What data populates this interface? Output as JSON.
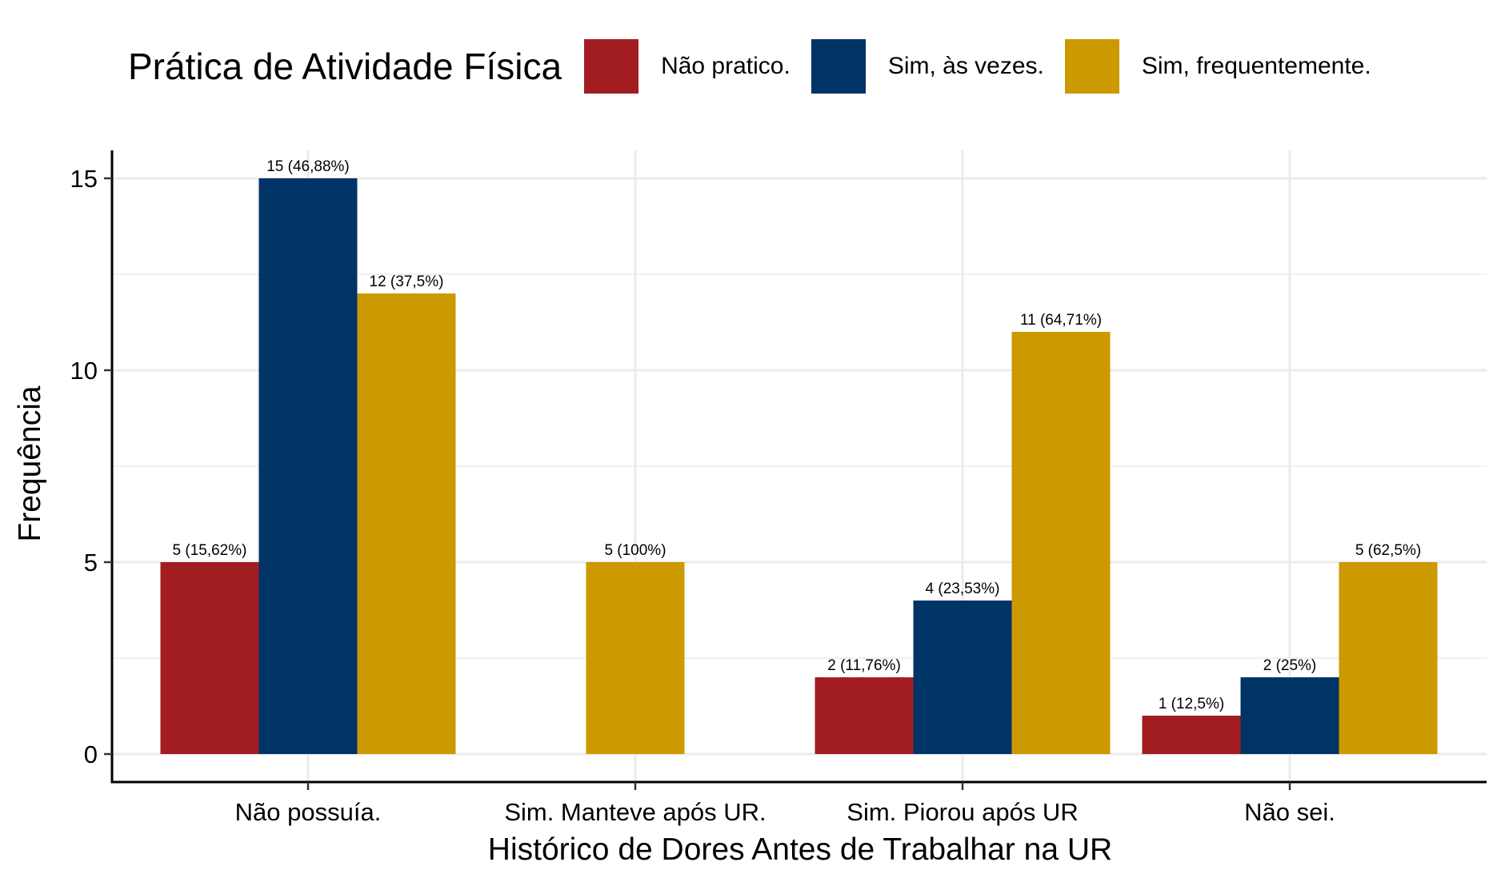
{
  "chart_data": {
    "type": "bar",
    "title": "",
    "xlabel": "Histórico de Dores Antes de Trabalhar na UR",
    "ylabel": "Frequência",
    "ylim": [
      0,
      15.7
    ],
    "yticks": [
      0,
      5,
      10,
      15
    ],
    "grid": true,
    "legend": {
      "title": "Prática de Atividade Física",
      "position": "top"
    },
    "categories": [
      "Não possuía.",
      "Sim. Manteve após UR.",
      "Sim. Piorou após UR",
      "Não sei."
    ],
    "series": [
      {
        "name": "Não pratico.",
        "color": "#A11D21",
        "values": [
          5,
          null,
          2,
          1
        ],
        "labels": [
          "5 (15,62%)",
          "",
          "2 (11,76%)",
          "1 (12,5%)"
        ]
      },
      {
        "name": "Sim, às vezes.",
        "color": "#003366",
        "values": [
          15,
          null,
          4,
          2
        ],
        "labels": [
          "15 (46,88%)",
          "",
          "4 (23,53%)",
          "2 (25%)"
        ]
      },
      {
        "name": "Sim, frequentemente.",
        "color": "#CC9900",
        "values": [
          12,
          5,
          11,
          5
        ],
        "labels": [
          "12 (37,5%)",
          "5 (100%)",
          "11 (64,71%)",
          "5 (62,5%)"
        ]
      }
    ]
  }
}
